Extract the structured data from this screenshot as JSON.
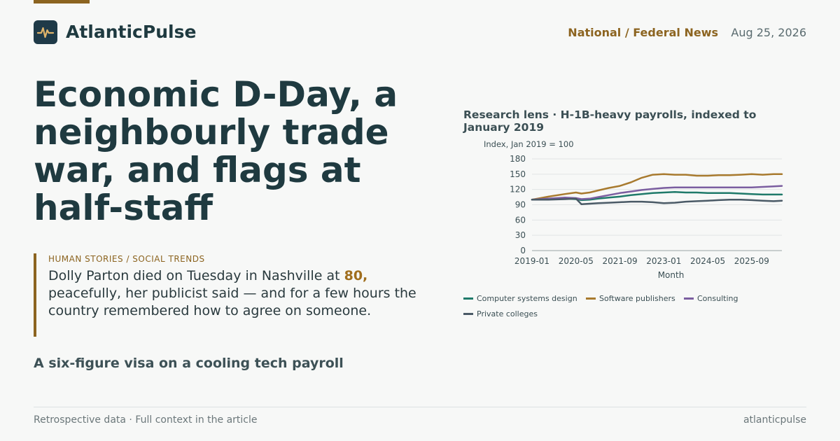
{
  "brand": {
    "name": "AtlanticPulse",
    "logo_icon": "pulse-icon"
  },
  "header": {
    "section": "National / Federal News",
    "date": "Aug 25, 2026"
  },
  "headline": "Economic D-Day, a neighbourly trade war, and flags at half-staff",
  "story": {
    "kicker": "HUMAN STORIES / SOCIAL TRENDS",
    "dek_before": "Dolly Parton died on Tuesday in Nashville at ",
    "dek_highlight": "80,",
    "dek_after": " peacefully, her publicist said — and for a few hours the country remembered how to agree on someone."
  },
  "subhead": "A six-figure visa on a cooling tech payroll",
  "footer": {
    "left": "Retrospective data · Full context in the article",
    "right": "atlanticpulse"
  },
  "colors": {
    "accent": "#8c6420",
    "text": "#1f3a40",
    "background": "#f7f8f7"
  },
  "chart_data": {
    "type": "line",
    "title": "Research lens · H-1B-heavy payrolls, indexed to January 2019",
    "ylabel": "Index, Jan 2019 = 100",
    "xlabel": "Month",
    "ylim": [
      0,
      180
    ],
    "yticks": [
      0,
      30,
      60,
      90,
      120,
      150,
      180
    ],
    "xticks": [
      "2019-01",
      "2020-05",
      "2021-09",
      "2023-01",
      "2024-05",
      "2025-09"
    ],
    "x_range": [
      "2019-01",
      "2026-08"
    ],
    "grid": "horizontal",
    "legend_position": "bottom",
    "x": [
      "2019-01",
      "2019-07",
      "2020-01",
      "2020-05",
      "2020-07",
      "2020-10",
      "2021-01",
      "2021-05",
      "2021-09",
      "2022-01",
      "2022-05",
      "2022-09",
      "2023-01",
      "2023-05",
      "2023-09",
      "2024-01",
      "2024-05",
      "2024-09",
      "2025-01",
      "2025-05",
      "2025-09",
      "2026-01",
      "2026-05",
      "2026-08"
    ],
    "series": [
      {
        "name": "Computer systems design",
        "color": "#1f7a6a",
        "values": [
          100,
          101,
          102,
          101,
          99,
          100,
          102,
          104,
          106,
          109,
          111,
          113,
          114,
          115,
          114,
          114,
          113,
          113,
          113,
          112,
          111,
          110,
          110,
          110
        ]
      },
      {
        "name": "Software publishers",
        "color": "#a87a2e",
        "values": [
          100,
          106,
          111,
          114,
          112,
          114,
          118,
          123,
          127,
          134,
          143,
          149,
          150,
          149,
          149,
          147,
          147,
          148,
          148,
          149,
          150,
          149,
          150,
          150
        ]
      },
      {
        "name": "Consulting",
        "color": "#7b5ea0",
        "values": [
          100,
          102,
          104,
          103,
          101,
          102,
          105,
          109,
          113,
          116,
          119,
          121,
          123,
          124,
          124,
          124,
          124,
          124,
          124,
          124,
          124,
          125,
          126,
          127
        ]
      },
      {
        "name": "Private colleges",
        "color": "#4a5a66",
        "values": [
          100,
          100,
          101,
          102,
          91,
          92,
          93,
          94,
          95,
          96,
          96,
          95,
          93,
          94,
          96,
          97,
          98,
          99,
          100,
          100,
          99,
          98,
          97,
          98
        ]
      }
    ]
  }
}
